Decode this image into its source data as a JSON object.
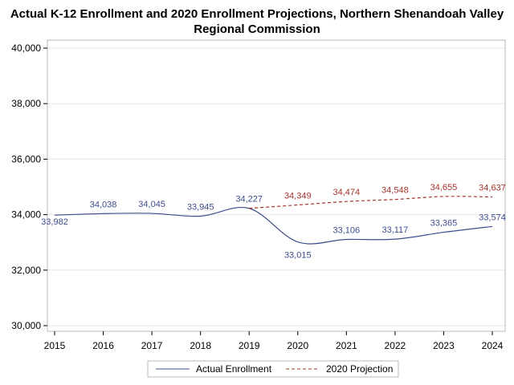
{
  "chart_data": {
    "type": "line",
    "title": [
      "Actual K-12 Enrollment and 2020 Enrollment Projections, Northern Shenandoah Valley",
      "Regional Commission"
    ],
    "xlabel": "",
    "ylabel": "",
    "x_ticks": [
      "2015",
      "2016",
      "2017",
      "2018",
      "2019",
      "2020",
      "2021",
      "2022",
      "2023",
      "2024"
    ],
    "y_ticks": [
      "30,000",
      "32,000",
      "34,000",
      "36,000",
      "38,000",
      "40,000"
    ],
    "xlim": [
      2015,
      2024
    ],
    "ylim": [
      30000,
      40000
    ],
    "grid": "horizontal",
    "legend_position": "bottom",
    "series": [
      {
        "name": "Actual Enrollment",
        "style": "solid",
        "color": "#3c4c8c",
        "x": [
          2015,
          2016,
          2017,
          2018,
          2019,
          2020,
          2021,
          2022,
          2023,
          2024
        ],
        "values": [
          33982,
          34038,
          34045,
          33945,
          34227,
          33015,
          33106,
          33117,
          33365,
          33574
        ],
        "labels": [
          "33,982",
          "34,038",
          "34,045",
          "33,945",
          "34,227",
          "33,015",
          "33,106",
          "33,117",
          "33,365",
          "33,574"
        ]
      },
      {
        "name": "2020 Projection",
        "style": "dashed",
        "color": "#a8342c",
        "x": [
          2019,
          2020,
          2021,
          2022,
          2023,
          2024
        ],
        "values": [
          34227,
          34349,
          34474,
          34548,
          34655,
          34637
        ],
        "labels": [
          "",
          "34,349",
          "34,474",
          "34,548",
          "34,655",
          "34,637"
        ]
      }
    ]
  }
}
